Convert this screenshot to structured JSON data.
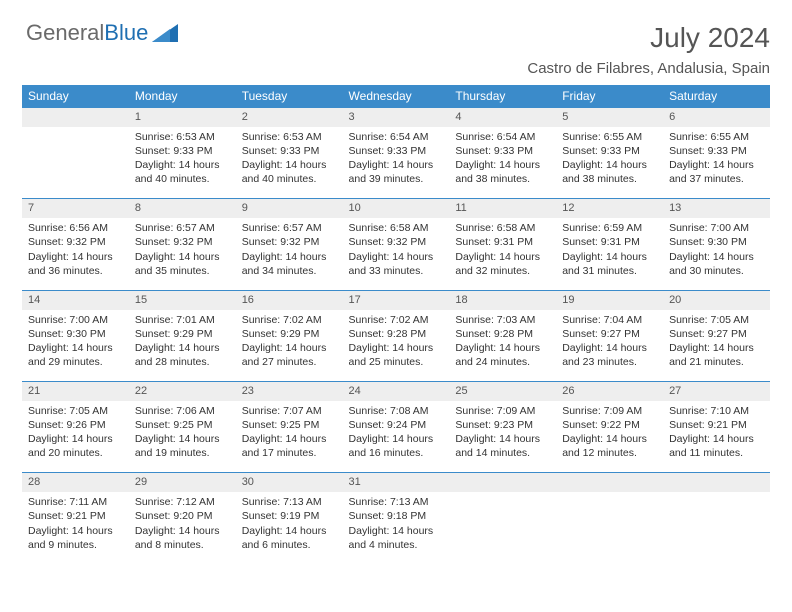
{
  "brand": {
    "part1": "General",
    "part2": "Blue"
  },
  "title": "July 2024",
  "subtitle": "Castro de Filabres, Andalusia, Spain",
  "colors": {
    "header_bg": "#3b8bca",
    "header_fg": "#ffffff",
    "daynum_bg": "#eeeeee",
    "rule": "#3b8bca",
    "text": "#333333"
  },
  "days": [
    "Sunday",
    "Monday",
    "Tuesday",
    "Wednesday",
    "Thursday",
    "Friday",
    "Saturday"
  ],
  "weeks": [
    {
      "nums": [
        "",
        "1",
        "2",
        "3",
        "4",
        "5",
        "6"
      ],
      "cells": [
        "",
        "Sunrise: 6:53 AM\nSunset: 9:33 PM\nDaylight: 14 hours and 40 minutes.",
        "Sunrise: 6:53 AM\nSunset: 9:33 PM\nDaylight: 14 hours and 40 minutes.",
        "Sunrise: 6:54 AM\nSunset: 9:33 PM\nDaylight: 14 hours and 39 minutes.",
        "Sunrise: 6:54 AM\nSunset: 9:33 PM\nDaylight: 14 hours and 38 minutes.",
        "Sunrise: 6:55 AM\nSunset: 9:33 PM\nDaylight: 14 hours and 38 minutes.",
        "Sunrise: 6:55 AM\nSunset: 9:33 PM\nDaylight: 14 hours and 37 minutes."
      ]
    },
    {
      "nums": [
        "7",
        "8",
        "9",
        "10",
        "11",
        "12",
        "13"
      ],
      "cells": [
        "Sunrise: 6:56 AM\nSunset: 9:32 PM\nDaylight: 14 hours and 36 minutes.",
        "Sunrise: 6:57 AM\nSunset: 9:32 PM\nDaylight: 14 hours and 35 minutes.",
        "Sunrise: 6:57 AM\nSunset: 9:32 PM\nDaylight: 14 hours and 34 minutes.",
        "Sunrise: 6:58 AM\nSunset: 9:32 PM\nDaylight: 14 hours and 33 minutes.",
        "Sunrise: 6:58 AM\nSunset: 9:31 PM\nDaylight: 14 hours and 32 minutes.",
        "Sunrise: 6:59 AM\nSunset: 9:31 PM\nDaylight: 14 hours and 31 minutes.",
        "Sunrise: 7:00 AM\nSunset: 9:30 PM\nDaylight: 14 hours and 30 minutes."
      ]
    },
    {
      "nums": [
        "14",
        "15",
        "16",
        "17",
        "18",
        "19",
        "20"
      ],
      "cells": [
        "Sunrise: 7:00 AM\nSunset: 9:30 PM\nDaylight: 14 hours and 29 minutes.",
        "Sunrise: 7:01 AM\nSunset: 9:29 PM\nDaylight: 14 hours and 28 minutes.",
        "Sunrise: 7:02 AM\nSunset: 9:29 PM\nDaylight: 14 hours and 27 minutes.",
        "Sunrise: 7:02 AM\nSunset: 9:28 PM\nDaylight: 14 hours and 25 minutes.",
        "Sunrise: 7:03 AM\nSunset: 9:28 PM\nDaylight: 14 hours and 24 minutes.",
        "Sunrise: 7:04 AM\nSunset: 9:27 PM\nDaylight: 14 hours and 23 minutes.",
        "Sunrise: 7:05 AM\nSunset: 9:27 PM\nDaylight: 14 hours and 21 minutes."
      ]
    },
    {
      "nums": [
        "21",
        "22",
        "23",
        "24",
        "25",
        "26",
        "27"
      ],
      "cells": [
        "Sunrise: 7:05 AM\nSunset: 9:26 PM\nDaylight: 14 hours and 20 minutes.",
        "Sunrise: 7:06 AM\nSunset: 9:25 PM\nDaylight: 14 hours and 19 minutes.",
        "Sunrise: 7:07 AM\nSunset: 9:25 PM\nDaylight: 14 hours and 17 minutes.",
        "Sunrise: 7:08 AM\nSunset: 9:24 PM\nDaylight: 14 hours and 16 minutes.",
        "Sunrise: 7:09 AM\nSunset: 9:23 PM\nDaylight: 14 hours and 14 minutes.",
        "Sunrise: 7:09 AM\nSunset: 9:22 PM\nDaylight: 14 hours and 12 minutes.",
        "Sunrise: 7:10 AM\nSunset: 9:21 PM\nDaylight: 14 hours and 11 minutes."
      ]
    },
    {
      "nums": [
        "28",
        "29",
        "30",
        "31",
        "",
        "",
        ""
      ],
      "cells": [
        "Sunrise: 7:11 AM\nSunset: 9:21 PM\nDaylight: 14 hours and 9 minutes.",
        "Sunrise: 7:12 AM\nSunset: 9:20 PM\nDaylight: 14 hours and 8 minutes.",
        "Sunrise: 7:13 AM\nSunset: 9:19 PM\nDaylight: 14 hours and 6 minutes.",
        "Sunrise: 7:13 AM\nSunset: 9:18 PM\nDaylight: 14 hours and 4 minutes.",
        "",
        "",
        ""
      ]
    }
  ]
}
